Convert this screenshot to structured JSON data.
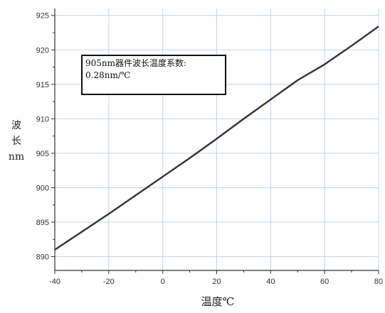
{
  "chart_data": {
    "type": "line",
    "title": "",
    "xlabel": "温度℃",
    "ylabel": [
      "波",
      "长",
      "nm"
    ],
    "xlim": [
      -40,
      80
    ],
    "ylim": [
      888,
      926
    ],
    "x_ticks": [
      -40,
      -20,
      0,
      20,
      40,
      60,
      80
    ],
    "y_ticks": [
      890,
      895,
      900,
      905,
      910,
      915,
      920,
      925
    ],
    "grid": true,
    "series": [
      {
        "color": "#333333",
        "x": [
          -40,
          -30,
          -20,
          -10,
          0,
          10,
          20,
          30,
          40,
          50,
          60,
          70,
          80
        ],
        "y": [
          891.0,
          893.6,
          896.2,
          898.9,
          901.6,
          904.3,
          907.1,
          910.0,
          912.8,
          915.6,
          917.9,
          920.6,
          923.4
        ]
      }
    ],
    "annotation": {
      "line1": "905nm器件波长温度系数:",
      "line2": "0.28nm/℃"
    }
  }
}
